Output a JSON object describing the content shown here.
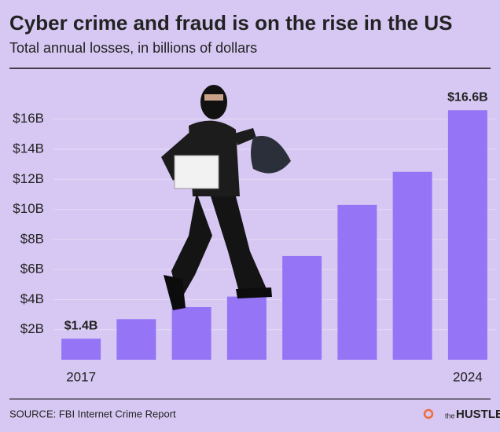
{
  "chart_data": {
    "type": "bar",
    "title": "Cyber crime and fraud is on the rise in the US",
    "subtitle": "Total annual losses, in billions of dollars",
    "categories": [
      "2017",
      null,
      null,
      null,
      null,
      null,
      null,
      "2024"
    ],
    "values": [
      1.4,
      2.7,
      3.5,
      4.2,
      6.9,
      10.3,
      12.5,
      16.6
    ],
    "value_labels": [
      "$1.4B",
      null,
      null,
      null,
      null,
      null,
      null,
      "$16.6B"
    ],
    "color": "#9574f6",
    "label_color": "#7b2fd6",
    "ylim": [
      0,
      18
    ],
    "yticks": [
      {
        "value": 2,
        "label": "$2B"
      },
      {
        "value": 4,
        "label": "$4B"
      },
      {
        "value": 6,
        "label": "$6B"
      },
      {
        "value": 8,
        "label": "$8B"
      },
      {
        "value": 10,
        "label": "$10B"
      },
      {
        "value": 12,
        "label": "$12B"
      },
      {
        "value": 14,
        "label": "$14B"
      },
      {
        "value": 16,
        "label": "$16B"
      }
    ],
    "grid": true,
    "source": "SOURCE: FBI Internet Crime Report",
    "brand": {
      "prefix": "the",
      "name": "HUSTLE"
    }
  }
}
